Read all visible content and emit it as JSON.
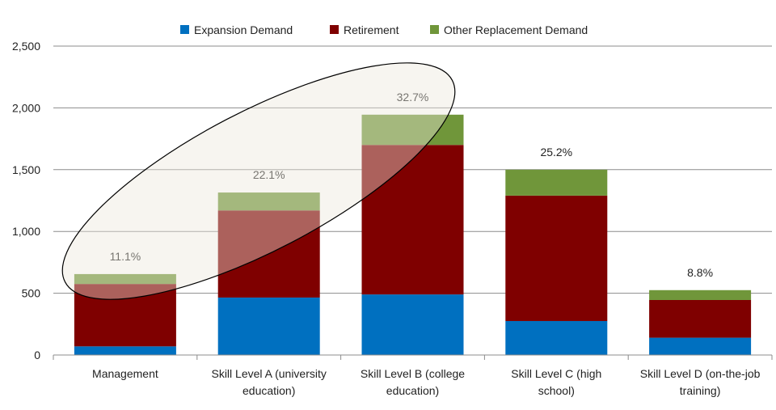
{
  "chart_data": {
    "type": "bar",
    "stacked": true,
    "categories": [
      [
        "Management"
      ],
      [
        "Skill Level A (university",
        "education)"
      ],
      [
        "Skill Level B (college",
        "education)"
      ],
      [
        "Skill Level C (high",
        "school)"
      ],
      [
        "Skill Level D (on-the-job",
        "training)"
      ]
    ],
    "series": [
      {
        "name": "Expansion Demand",
        "color": "#0070C0",
        "values": [
          70,
          465,
          490,
          275,
          140
        ]
      },
      {
        "name": "Retirement",
        "color": "#7F0000",
        "values": [
          505,
          705,
          1210,
          1015,
          305
        ]
      },
      {
        "name": "Other Replacement Demand",
        "color": "#70963A",
        "values": [
          80,
          145,
          245,
          210,
          80
        ]
      }
    ],
    "data_labels": [
      "11.1%",
      "22.1%",
      "32.7%",
      "25.2%",
      "8.8%"
    ],
    "ylim": [
      0,
      2500
    ],
    "y_ticks": [
      0,
      500,
      1000,
      1500,
      2000,
      2500
    ],
    "y_tick_labels": [
      "0",
      "500",
      "1,000",
      "1,500",
      "2,000",
      "2,500"
    ],
    "grid": true,
    "legend_position": "top",
    "annotation": "ellipse highlighting Management, Skill Level A and Skill Level B",
    "title": "",
    "xlabel": "",
    "ylabel": ""
  }
}
